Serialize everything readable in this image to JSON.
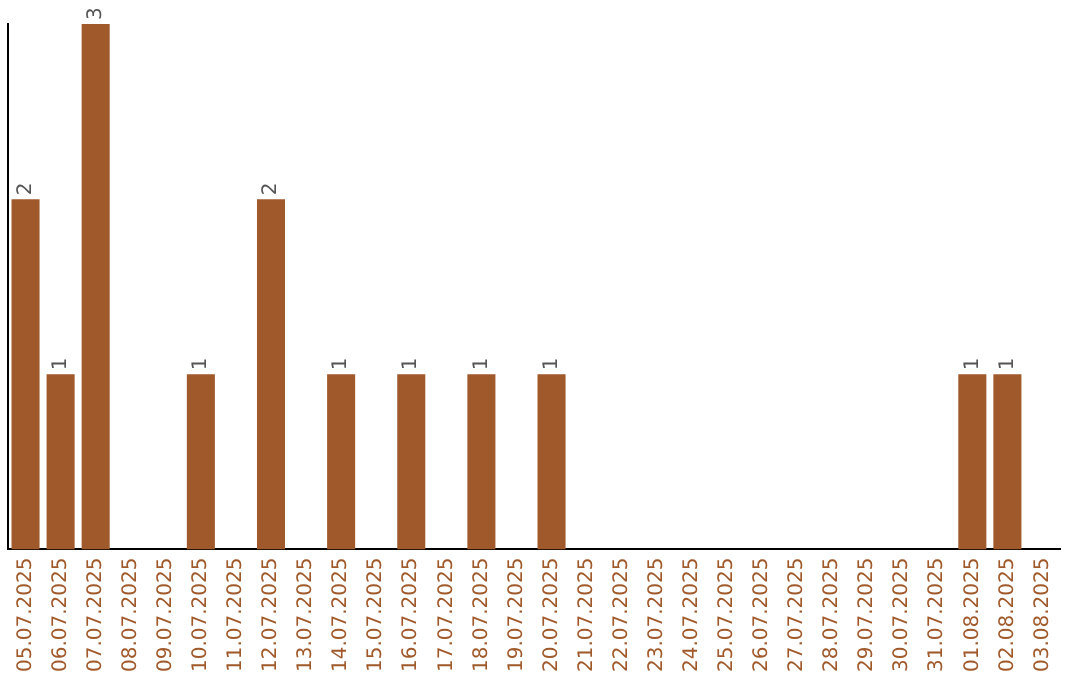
{
  "chart_data": {
    "type": "bar",
    "categories": [
      "05.07.2025",
      "06.07.2025",
      "07.07.2025",
      "08.07.2025",
      "09.07.2025",
      "10.07.2025",
      "11.07.2025",
      "12.07.2025",
      "13.07.2025",
      "14.07.2025",
      "15.07.2025",
      "16.07.2025",
      "17.07.2025",
      "18.07.2025",
      "19.07.2025",
      "20.07.2025",
      "21.07.2025",
      "22.07.2025",
      "23.07.2025",
      "24.07.2025",
      "25.07.2025",
      "26.07.2025",
      "27.07.2025",
      "28.07.2025",
      "29.07.2025",
      "30.07.2025",
      "31.07.2025",
      "01.08.2025",
      "02.08.2025",
      "03.08.2025"
    ],
    "values": [
      2,
      1,
      3,
      0,
      0,
      1,
      0,
      2,
      0,
      1,
      0,
      1,
      0,
      1,
      0,
      1,
      0,
      0,
      0,
      0,
      0,
      0,
      0,
      0,
      0,
      0,
      0,
      1,
      1,
      0
    ],
    "value_labels": [
      "2",
      "1",
      "3",
      null,
      null,
      "1",
      null,
      "2",
      null,
      "1",
      null,
      "1",
      null,
      "1",
      null,
      "1",
      null,
      null,
      null,
      null,
      null,
      null,
      null,
      null,
      null,
      null,
      null,
      "1",
      "1",
      null
    ],
    "color": "#a0592b",
    "ylim": [
      0,
      3
    ],
    "tick_labels": "x",
    "grid": false,
    "legend": false
  }
}
